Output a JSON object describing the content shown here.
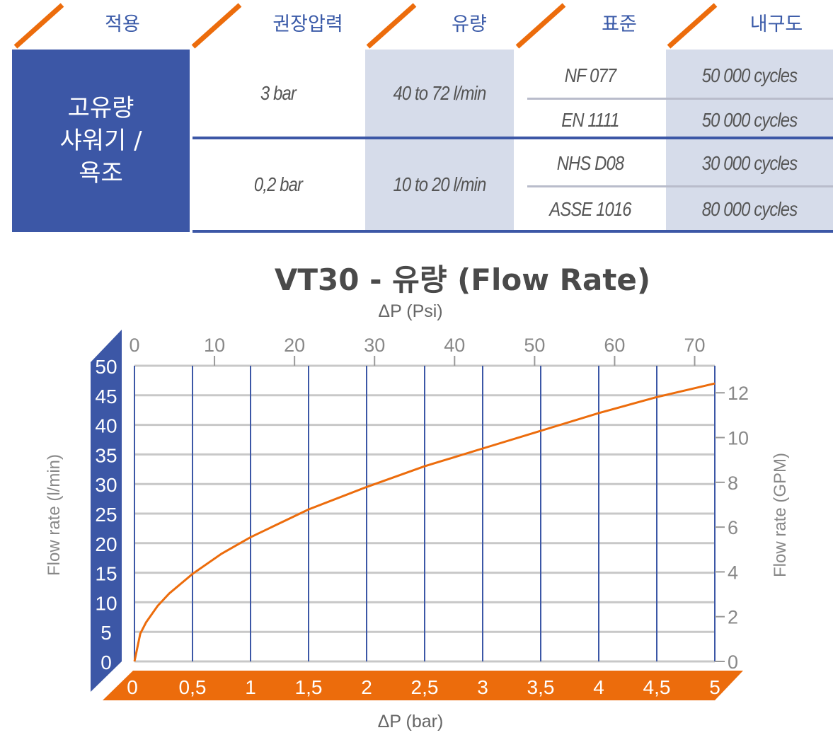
{
  "table": {
    "headers": [
      "적용",
      "권장압력",
      "유량",
      "표준",
      "내구도"
    ],
    "application": "고유량 샤워기 / 욕조",
    "application_lines": [
      "고유량",
      "샤워기 /",
      "욕조"
    ],
    "rows": [
      {
        "pressure": "3 bar",
        "flow": "40 to 72 l/min",
        "standards": [
          {
            "name": "NF 077",
            "durability": "50 000 cycles"
          },
          {
            "name": "EN 1111",
            "durability": "50 000 cycles"
          }
        ]
      },
      {
        "pressure": "0,2 bar",
        "flow": "10 to 20 l/min",
        "standards": [
          {
            "name": "NHS D08",
            "durability": "30 000 cycles"
          },
          {
            "name": "ASSE 1016",
            "durability": "80 000 cycles"
          }
        ]
      }
    ]
  },
  "colors": {
    "blue": "#3c57a6",
    "orange": "#ec6c0c",
    "light_blue": "#d6dcea",
    "grid": "#c8c8c8"
  },
  "chart_data": {
    "type": "line",
    "title": "VT30 -  유량 (Flow Rate)",
    "xlabel": "ΔP (bar)",
    "x2label": "ΔP (Psi)",
    "ylabel": "Flow rate (l/min)",
    "y2label": "Flow rate (GPM)",
    "xlim": [
      0,
      5
    ],
    "ylim": [
      0,
      50
    ],
    "x_ticks": [
      "0",
      "0,5",
      "1",
      "1,5",
      "2",
      "2,5",
      "3",
      "3,5",
      "4",
      "4,5",
      "5"
    ],
    "x_tick_values": [
      0,
      0.5,
      1,
      1.5,
      2,
      2.5,
      3,
      3.5,
      4,
      4.5,
      5
    ],
    "y_ticks": [
      "0",
      "5",
      "10",
      "15",
      "20",
      "25",
      "30",
      "35",
      "40",
      "45",
      "50"
    ],
    "y_tick_values": [
      0,
      5,
      10,
      15,
      20,
      25,
      30,
      35,
      40,
      45,
      50
    ],
    "x2_ticks": [
      "0",
      "10",
      "20",
      "30",
      "40",
      "50",
      "60",
      "70"
    ],
    "x2_tick_values": [
      0,
      10,
      20,
      30,
      40,
      50,
      60,
      70
    ],
    "y2_ticks": [
      "0",
      "2",
      "4",
      "6",
      "8",
      "10",
      "12"
    ],
    "y2_tick_values": [
      0,
      2,
      4,
      6,
      8,
      10,
      12
    ],
    "grid": true,
    "series": [
      {
        "name": "VT30",
        "x": [
          0,
          0.05,
          0.1,
          0.2,
          0.3,
          0.5,
          0.75,
          1,
          1.5,
          2,
          2.5,
          3,
          3.5,
          4,
          4.5,
          5
        ],
        "y": [
          0,
          4.7,
          6.6,
          9.4,
          11.5,
          14.8,
          18.2,
          21,
          25.7,
          29.5,
          33,
          36,
          39,
          42,
          44.7,
          47
        ]
      }
    ]
  }
}
